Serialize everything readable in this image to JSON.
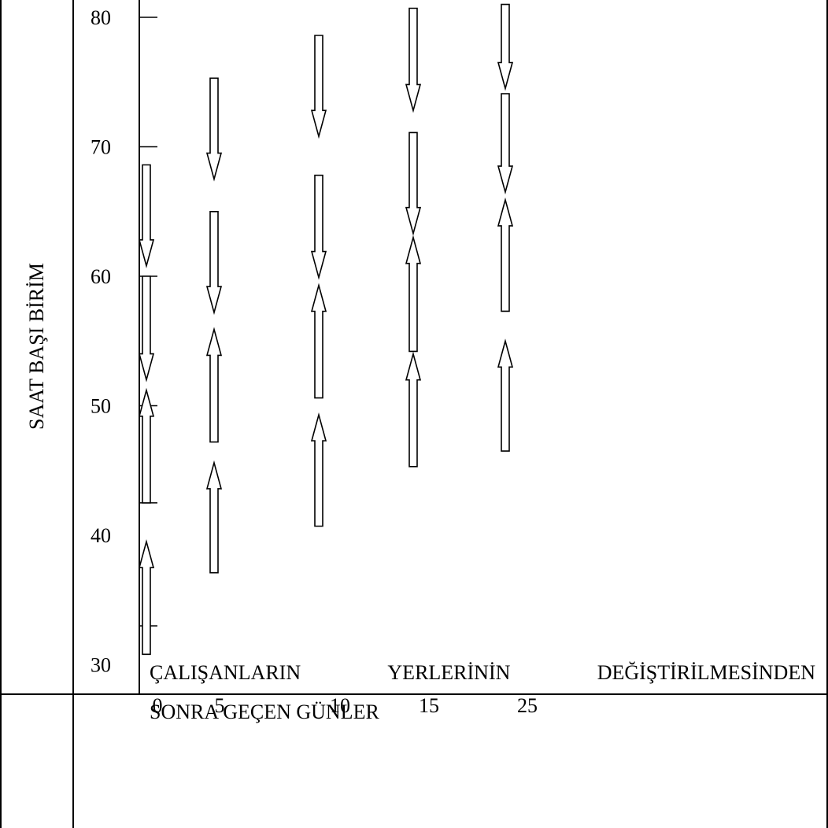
{
  "chart_data": {
    "type": "arrow-range",
    "ylabel": "SAAT BAŞI BİRİM",
    "xlabel_words_line1": [
      "ÇALIŞANLARIN",
      "YERLERİNİN",
      "DEĞİŞTİRİLMESİNDEN"
    ],
    "xlabel_line2": "SONRA GEÇEN GÜNLER",
    "y_ticks": [
      30,
      40,
      50,
      60,
      70,
      80
    ],
    "x_ticks": [
      0,
      5,
      10,
      15,
      25
    ],
    "ylim": [
      30,
      80
    ],
    "groups": [
      {
        "x": 0,
        "arrows": [
          {
            "direction": "down",
            "from": 68.6,
            "to": 60.8
          },
          {
            "direction": "down",
            "from": 60.0,
            "to": 52.0
          },
          {
            "direction": "up",
            "from": 42.5,
            "to": 51.2
          },
          {
            "direction": "up",
            "from": 30.8,
            "to": 39.5
          }
        ]
      },
      {
        "x": 5,
        "arrows": [
          {
            "direction": "down",
            "from": 75.3,
            "to": 67.5
          },
          {
            "direction": "down",
            "from": 65.0,
            "to": 57.2
          },
          {
            "direction": "up",
            "from": 47.2,
            "to": 55.9
          },
          {
            "direction": "up",
            "from": 37.1,
            "to": 45.6
          }
        ]
      },
      {
        "x": 10,
        "arrows": [
          {
            "direction": "down",
            "from": 78.6,
            "to": 70.8
          },
          {
            "direction": "down",
            "from": 67.8,
            "to": 59.9
          },
          {
            "direction": "up",
            "from": 50.6,
            "to": 59.3
          },
          {
            "direction": "up",
            "from": 40.7,
            "to": 49.3
          }
        ]
      },
      {
        "x": 15,
        "arrows": [
          {
            "direction": "down",
            "from": 80.7,
            "to": 72.8
          },
          {
            "direction": "down",
            "from": 71.1,
            "to": 63.3
          },
          {
            "direction": "up",
            "from": 54.2,
            "to": 63.0
          },
          {
            "direction": "up",
            "from": 45.3,
            "to": 54.0
          }
        ]
      },
      {
        "x": 25,
        "arrows": [
          {
            "direction": "down",
            "from": 81.0,
            "to": 74.5
          },
          {
            "direction": "down",
            "from": 74.1,
            "to": 66.5
          },
          {
            "direction": "up",
            "from": 57.3,
            "to": 65.9
          },
          {
            "direction": "up",
            "from": 46.5,
            "to": 55.0
          }
        ]
      }
    ]
  }
}
